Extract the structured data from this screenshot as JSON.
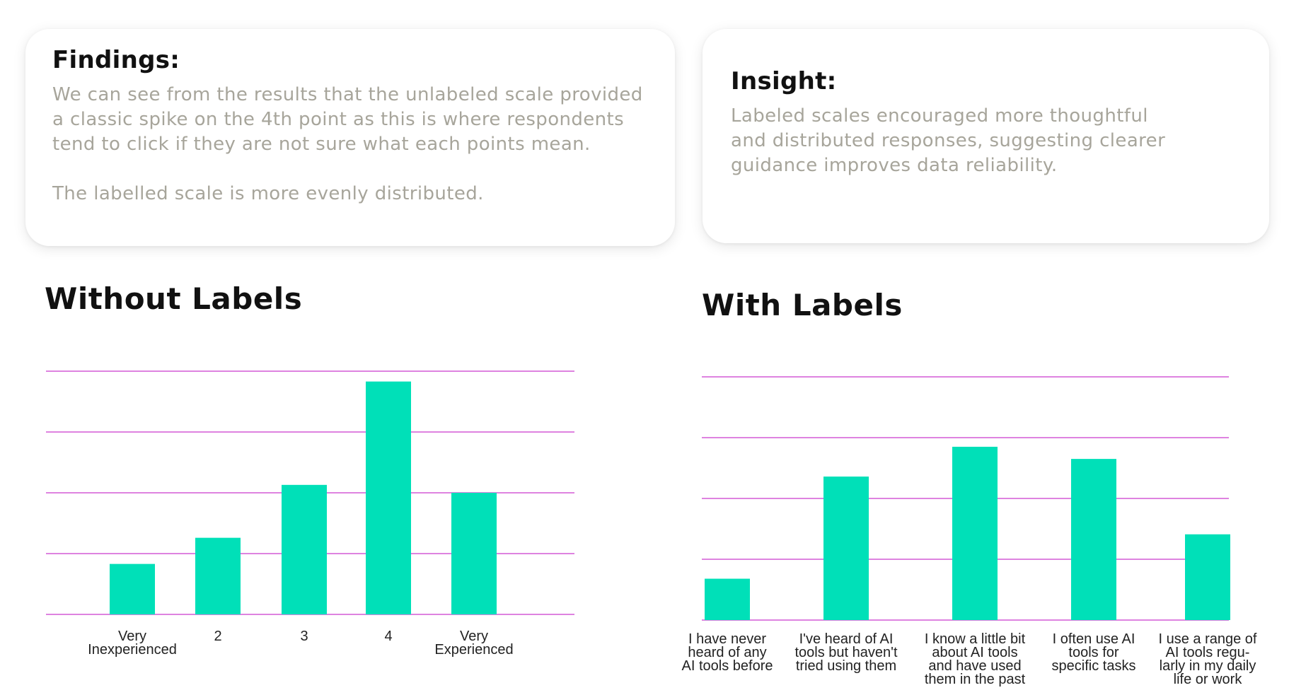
{
  "findings": {
    "title": "Findings:",
    "lines": [
      "We can see from the results that the unlabeled scale provided",
      "a classic spike on the 4th point as this is where respondents",
      "tend to click if they are not sure what each points mean."
    ],
    "note": "The labelled scale is more evenly distributed."
  },
  "insight": {
    "title": "Insight:",
    "lines": [
      "Labeled scales encouraged more thoughtful",
      "and distributed responses, suggesting clearer",
      "guidance improves data reliability."
    ]
  },
  "colors": {
    "bar": "#00e0b8",
    "grid": "#d45ad6",
    "body_text": "#a7a59b"
  },
  "chart_data": [
    {
      "type": "bar",
      "title": "Without Labels",
      "categories": [
        "Very Inexperienced",
        "2",
        "3",
        "4",
        "Very Experienced"
      ],
      "category_lines": [
        [
          "Very",
          "Inexperienced"
        ],
        [
          "2"
        ],
        [
          "3"
        ],
        [
          "4"
        ],
        [
          "Very",
          "Experienced"
        ]
      ],
      "values": [
        0.83,
        1.26,
        2.13,
        3.83,
        2.0
      ],
      "ylim": [
        0,
        4
      ],
      "grid": true
    },
    {
      "type": "bar",
      "title": "With Labels",
      "categories": [
        "I have never heard of any AI tools before",
        "I've heard of AI tools but haven't tried using them",
        "I know a little bit about AI tools and have used them in the past",
        "I often use AI tools for specific tasks",
        "I use a range of AI tools regularly in my daily life or work"
      ],
      "category_lines": [
        [
          "I have never",
          "heard of any",
          "AI tools before"
        ],
        [
          "I've heard of AI",
          "tools but haven't",
          "tried using them"
        ],
        [
          "I know a little bit",
          "about AI tools",
          "and have used",
          "them in the past"
        ],
        [
          "I often use AI",
          "tools for",
          "specific tasks"
        ],
        [
          "I use a range of",
          "AI tools regu-",
          "larly in my daily",
          "life or work"
        ]
      ],
      "values": [
        0.68,
        2.36,
        2.85,
        2.65,
        1.41
      ],
      "ylim": [
        0,
        4
      ],
      "grid": true
    }
  ]
}
